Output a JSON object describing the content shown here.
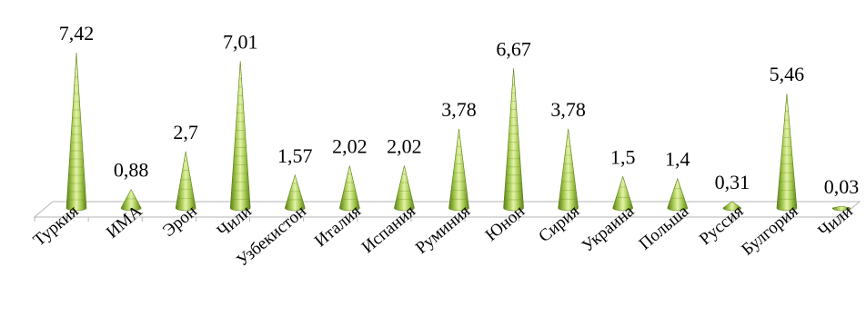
{
  "chart_data": {
    "type": "bar",
    "categories": [
      "Туркия",
      "ИМА",
      "Эрон",
      "Чили",
      "Узбекистон",
      "Италия",
      "Испания",
      "Руминия",
      "Юнон",
      "Сирия",
      "Украина",
      "Польша",
      "Руссия",
      "Булгория",
      "Чили"
    ],
    "values": [
      7.42,
      0.88,
      2.7,
      7.01,
      1.57,
      2.02,
      2.02,
      3.78,
      6.67,
      3.78,
      1.5,
      1.4,
      0.31,
      5.46,
      0.03
    ],
    "value_labels": [
      "7,42",
      "0,88",
      "2,7",
      "7,01",
      "1,57",
      "2,02",
      "2,02",
      "3,78",
      "6,67",
      "3,78",
      "1,5",
      "1,4",
      "0,31",
      "5,46",
      "0,03"
    ],
    "title": "",
    "xlabel": "",
    "ylabel": "",
    "ylim": [
      0,
      8
    ],
    "grid": false,
    "legend": "none",
    "bar_shape": "cone",
    "colors": {
      "cone_light": "#e4f2a8",
      "cone_mid": "#a8cc54",
      "cone_dark": "#5c7f16",
      "floor_stroke": "#b5b5b5"
    }
  }
}
